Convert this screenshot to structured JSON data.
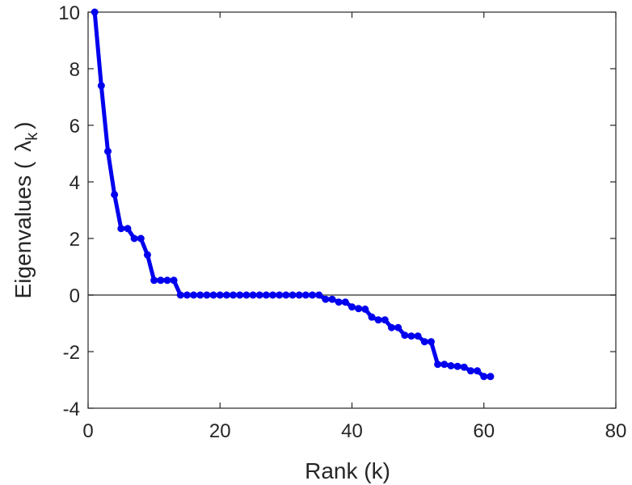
{
  "chart_data": {
    "type": "line",
    "title": "",
    "xlabel": "Rank (k)",
    "ylabel_prefix": "Eigenvalues (",
    "ylabel_symbol": "λ",
    "ylabel_subscript": "k",
    "ylabel_suffix": ")",
    "xlim": [
      0,
      80
    ],
    "ylim": [
      -4,
      10
    ],
    "xticks": [
      0,
      20,
      40,
      60,
      80
    ],
    "yticks": [
      -4,
      -2,
      0,
      2,
      4,
      6,
      8,
      10
    ],
    "xtick_labels": [
      "0",
      "20",
      "40",
      "60",
      "80"
    ],
    "ytick_labels": [
      "-4",
      "-2",
      "0",
      "2",
      "4",
      "6",
      "8",
      "10"
    ],
    "grid": false,
    "reference_line_y": 0,
    "colors": {
      "series": "#0000ee",
      "reference_line": "#4d4d4d",
      "axes": "#262626"
    },
    "series": [
      {
        "x": [
          1,
          2,
          3,
          4,
          5,
          6,
          7,
          8,
          9,
          10,
          11,
          12,
          13,
          14,
          15,
          16,
          17,
          18,
          19,
          20,
          21,
          22,
          23,
          24,
          25,
          26,
          27,
          28,
          29,
          30,
          31,
          32,
          33,
          34,
          35,
          36,
          37,
          38,
          39,
          40,
          41,
          42,
          43,
          44,
          45,
          46,
          47,
          48,
          49,
          50,
          51,
          52,
          53,
          54,
          55,
          56,
          57,
          58,
          59,
          60,
          61
        ],
        "values": [
          10.0,
          7.4,
          5.08,
          3.55,
          2.35,
          2.35,
          2.0,
          2.0,
          1.42,
          0.52,
          0.52,
          0.52,
          0.52,
          0.0,
          0.0,
          0.0,
          0.0,
          0.0,
          0.0,
          0.0,
          0.0,
          0.0,
          0.0,
          0.0,
          0.0,
          0.0,
          0.0,
          0.0,
          0.0,
          0.0,
          0.0,
          0.0,
          0.0,
          0.0,
          0.0,
          -0.15,
          -0.15,
          -0.25,
          -0.25,
          -0.42,
          -0.48,
          -0.5,
          -0.78,
          -0.88,
          -0.88,
          -1.15,
          -1.15,
          -1.42,
          -1.45,
          -1.45,
          -1.65,
          -1.65,
          -2.45,
          -2.45,
          -2.5,
          -2.52,
          -2.55,
          -2.68,
          -2.68,
          -2.88,
          -2.88
        ]
      }
    ]
  }
}
